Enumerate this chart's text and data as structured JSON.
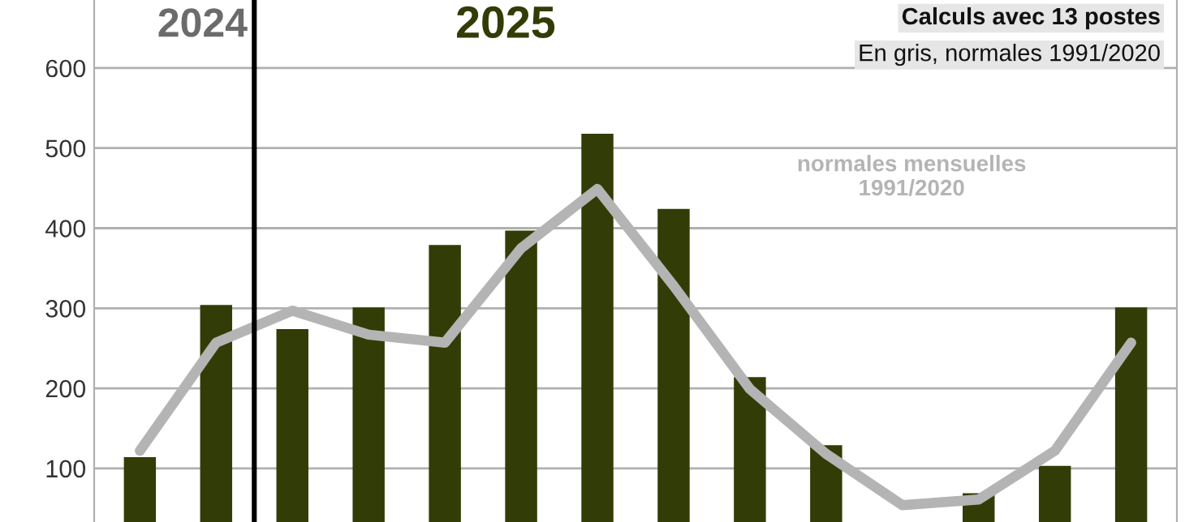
{
  "chart_data": {
    "type": "bar",
    "categories": [
      null,
      null,
      null,
      null,
      null,
      null,
      null,
      null,
      null,
      null,
      null,
      null,
      null,
      null
    ],
    "series": [
      {
        "color": "#323c06",
        "values": [
          114,
          304,
          274,
          301,
          379,
          397,
          518,
          424,
          214,
          129,
          null,
          69,
          103,
          301
        ]
      },
      {
        "type": "line",
        "name": "normales mensuelles\n1991/2020",
        "color": "#b4b4b4",
        "values": [
          122,
          257,
          297,
          267,
          257,
          375,
          449,
          328,
          199,
          118,
          54,
          61,
          122,
          257
        ]
      }
    ],
    "ylim": [
      33,
      685
    ],
    "yticks": [
      100,
      200,
      300,
      400,
      500,
      600
    ],
    "grid": "y",
    "marker": "none",
    "line_style": "solid",
    "annotations": [
      "2024",
      "2025",
      "Calculs avec 13 postes",
      "En gris, normales 1991/2020"
    ]
  }
}
